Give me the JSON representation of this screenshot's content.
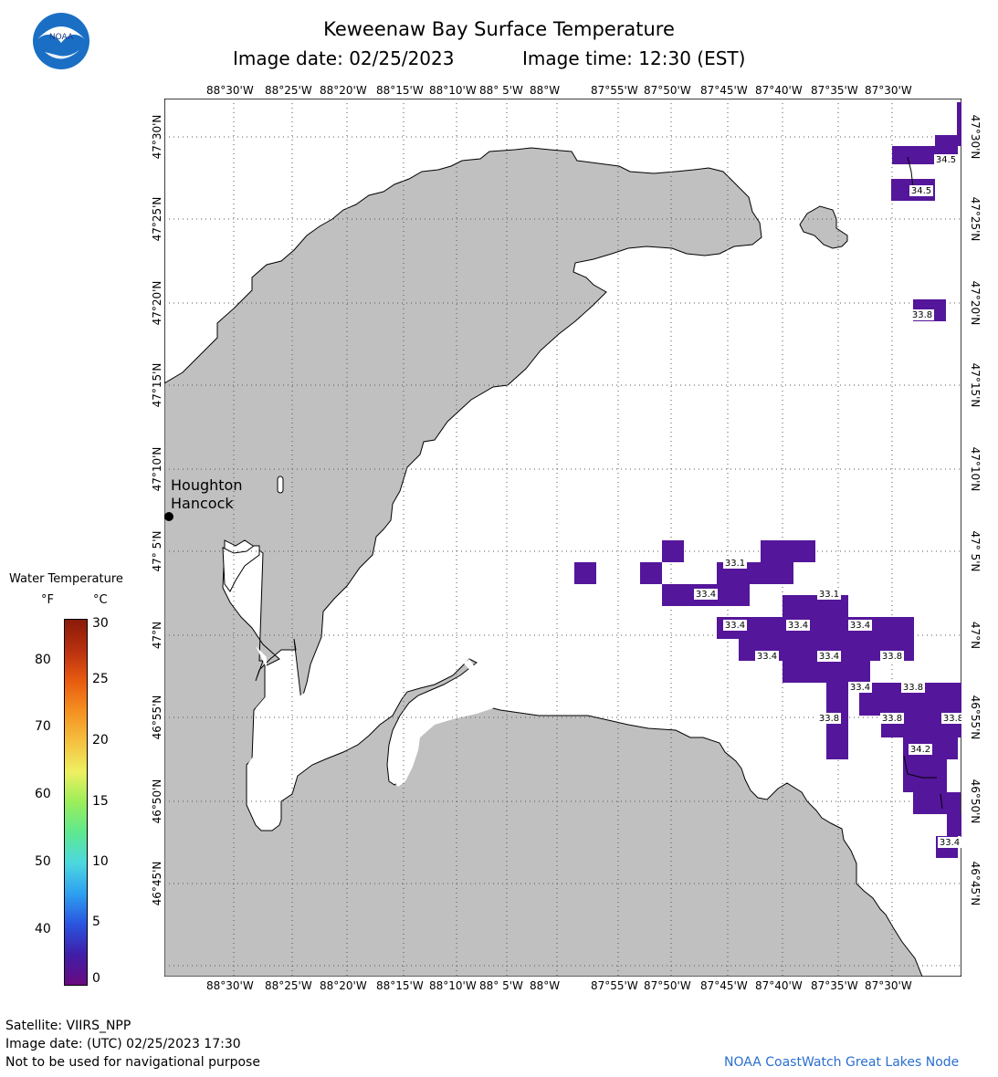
{
  "header": {
    "title": "Keweenaw Bay Surface Temperature",
    "date_label": "Image date: 02/25/2023",
    "time_label": "Image time: 12:30 (EST)"
  },
  "logo": {
    "text": "NOAA"
  },
  "map": {
    "lon_labels": [
      "88°30'W",
      "88°25'W",
      "88°20'W",
      "88°15'W",
      "88°10'W",
      "88° 5'W",
      "88°W",
      "87°55'W",
      "87°50'W",
      "87°45'W",
      "87°40'W",
      "87°35'W",
      "87°30'W"
    ],
    "lat_labels": [
      "47°30'N",
      "47°25'N",
      "47°20'N",
      "47°15'N",
      "47°10'N",
      "47° 5'N",
      "47°N",
      "46°55'N",
      "46°50'N",
      "46°45'N"
    ],
    "city": {
      "line1": "Houghton",
      "line2": "Hancock"
    },
    "temp_labels": [
      "34.5",
      "34.5",
      "33.8",
      "33.1",
      "33.4",
      "33.1",
      "33.4",
      "33.4",
      "33.4",
      "33.4",
      "33.4",
      "33.8",
      "33.4",
      "33.8",
      "33.8",
      "33.8",
      "33.8",
      "34.2",
      "33.4"
    ]
  },
  "legend": {
    "title": "Water Temperature",
    "unit_f": "°F",
    "unit_c": "°C",
    "f_ticks": [
      "80",
      "70",
      "60",
      "50",
      "40"
    ],
    "c_ticks": [
      "30",
      "25",
      "20",
      "15",
      "10",
      "5",
      "0"
    ],
    "colors": [
      "#6a0a80",
      "#3f1ea8",
      "#2a55e0",
      "#2ea0f0",
      "#4cd8e0",
      "#5ee890",
      "#9aee5a",
      "#eef060",
      "#f5c040",
      "#f59020",
      "#e85a10",
      "#b83010",
      "#8a1a08"
    ]
  },
  "footer": {
    "satellite": "Satellite: VIIRS_NPP",
    "utc_date": "Image date: (UTC) 02/25/2023  17:30",
    "warning": "Not to be used for navigational purpose",
    "credit": "NOAA CoastWatch Great Lakes Node"
  }
}
